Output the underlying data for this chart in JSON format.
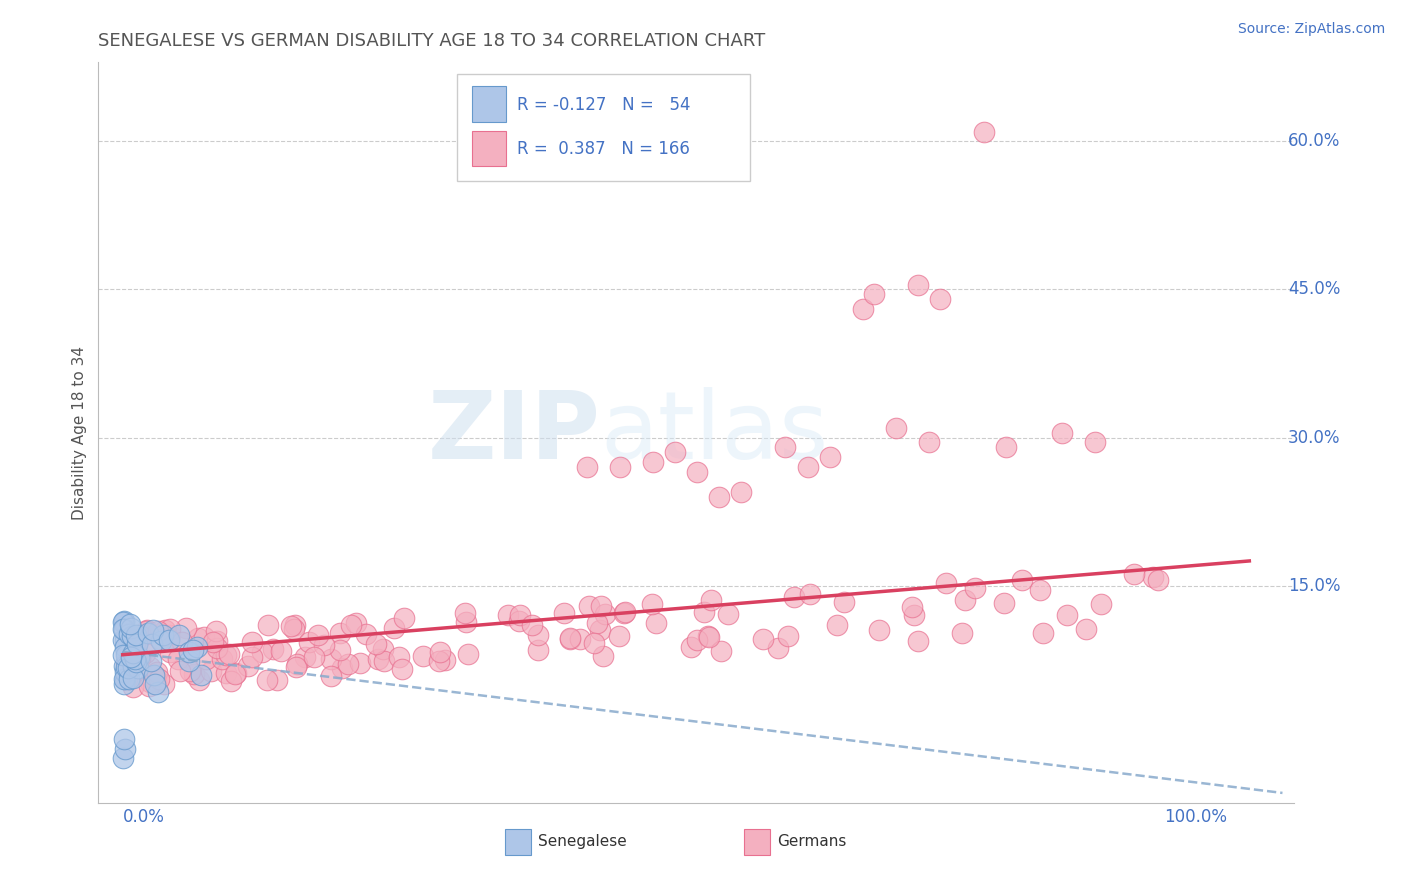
{
  "title": "SENEGALESE VS GERMAN DISABILITY AGE 18 TO 34 CORRELATION CHART",
  "source": "Source: ZipAtlas.com",
  "ylabel": "Disability Age 18 to 34",
  "ytick_vals": [
    0.15,
    0.3,
    0.45,
    0.6
  ],
  "ytick_labels": [
    "15.0%",
    "30.0%",
    "45.0%",
    "60.0%"
  ],
  "blue_scatter_color": "#aec6e8",
  "blue_edge_color": "#6699cc",
  "pink_scatter_color": "#f4b0c0",
  "pink_edge_color": "#e87090",
  "line_blue_color": "#88aacc",
  "line_pink_color": "#d94060",
  "grid_color": "#cccccc",
  "title_color": "#555555",
  "axis_label_color": "#4472c4",
  "watermark_color": "#d0e8f5",
  "legend_edge_color": "#cccccc",
  "source_color": "#4472c4",
  "ylabel_color": "#555555"
}
